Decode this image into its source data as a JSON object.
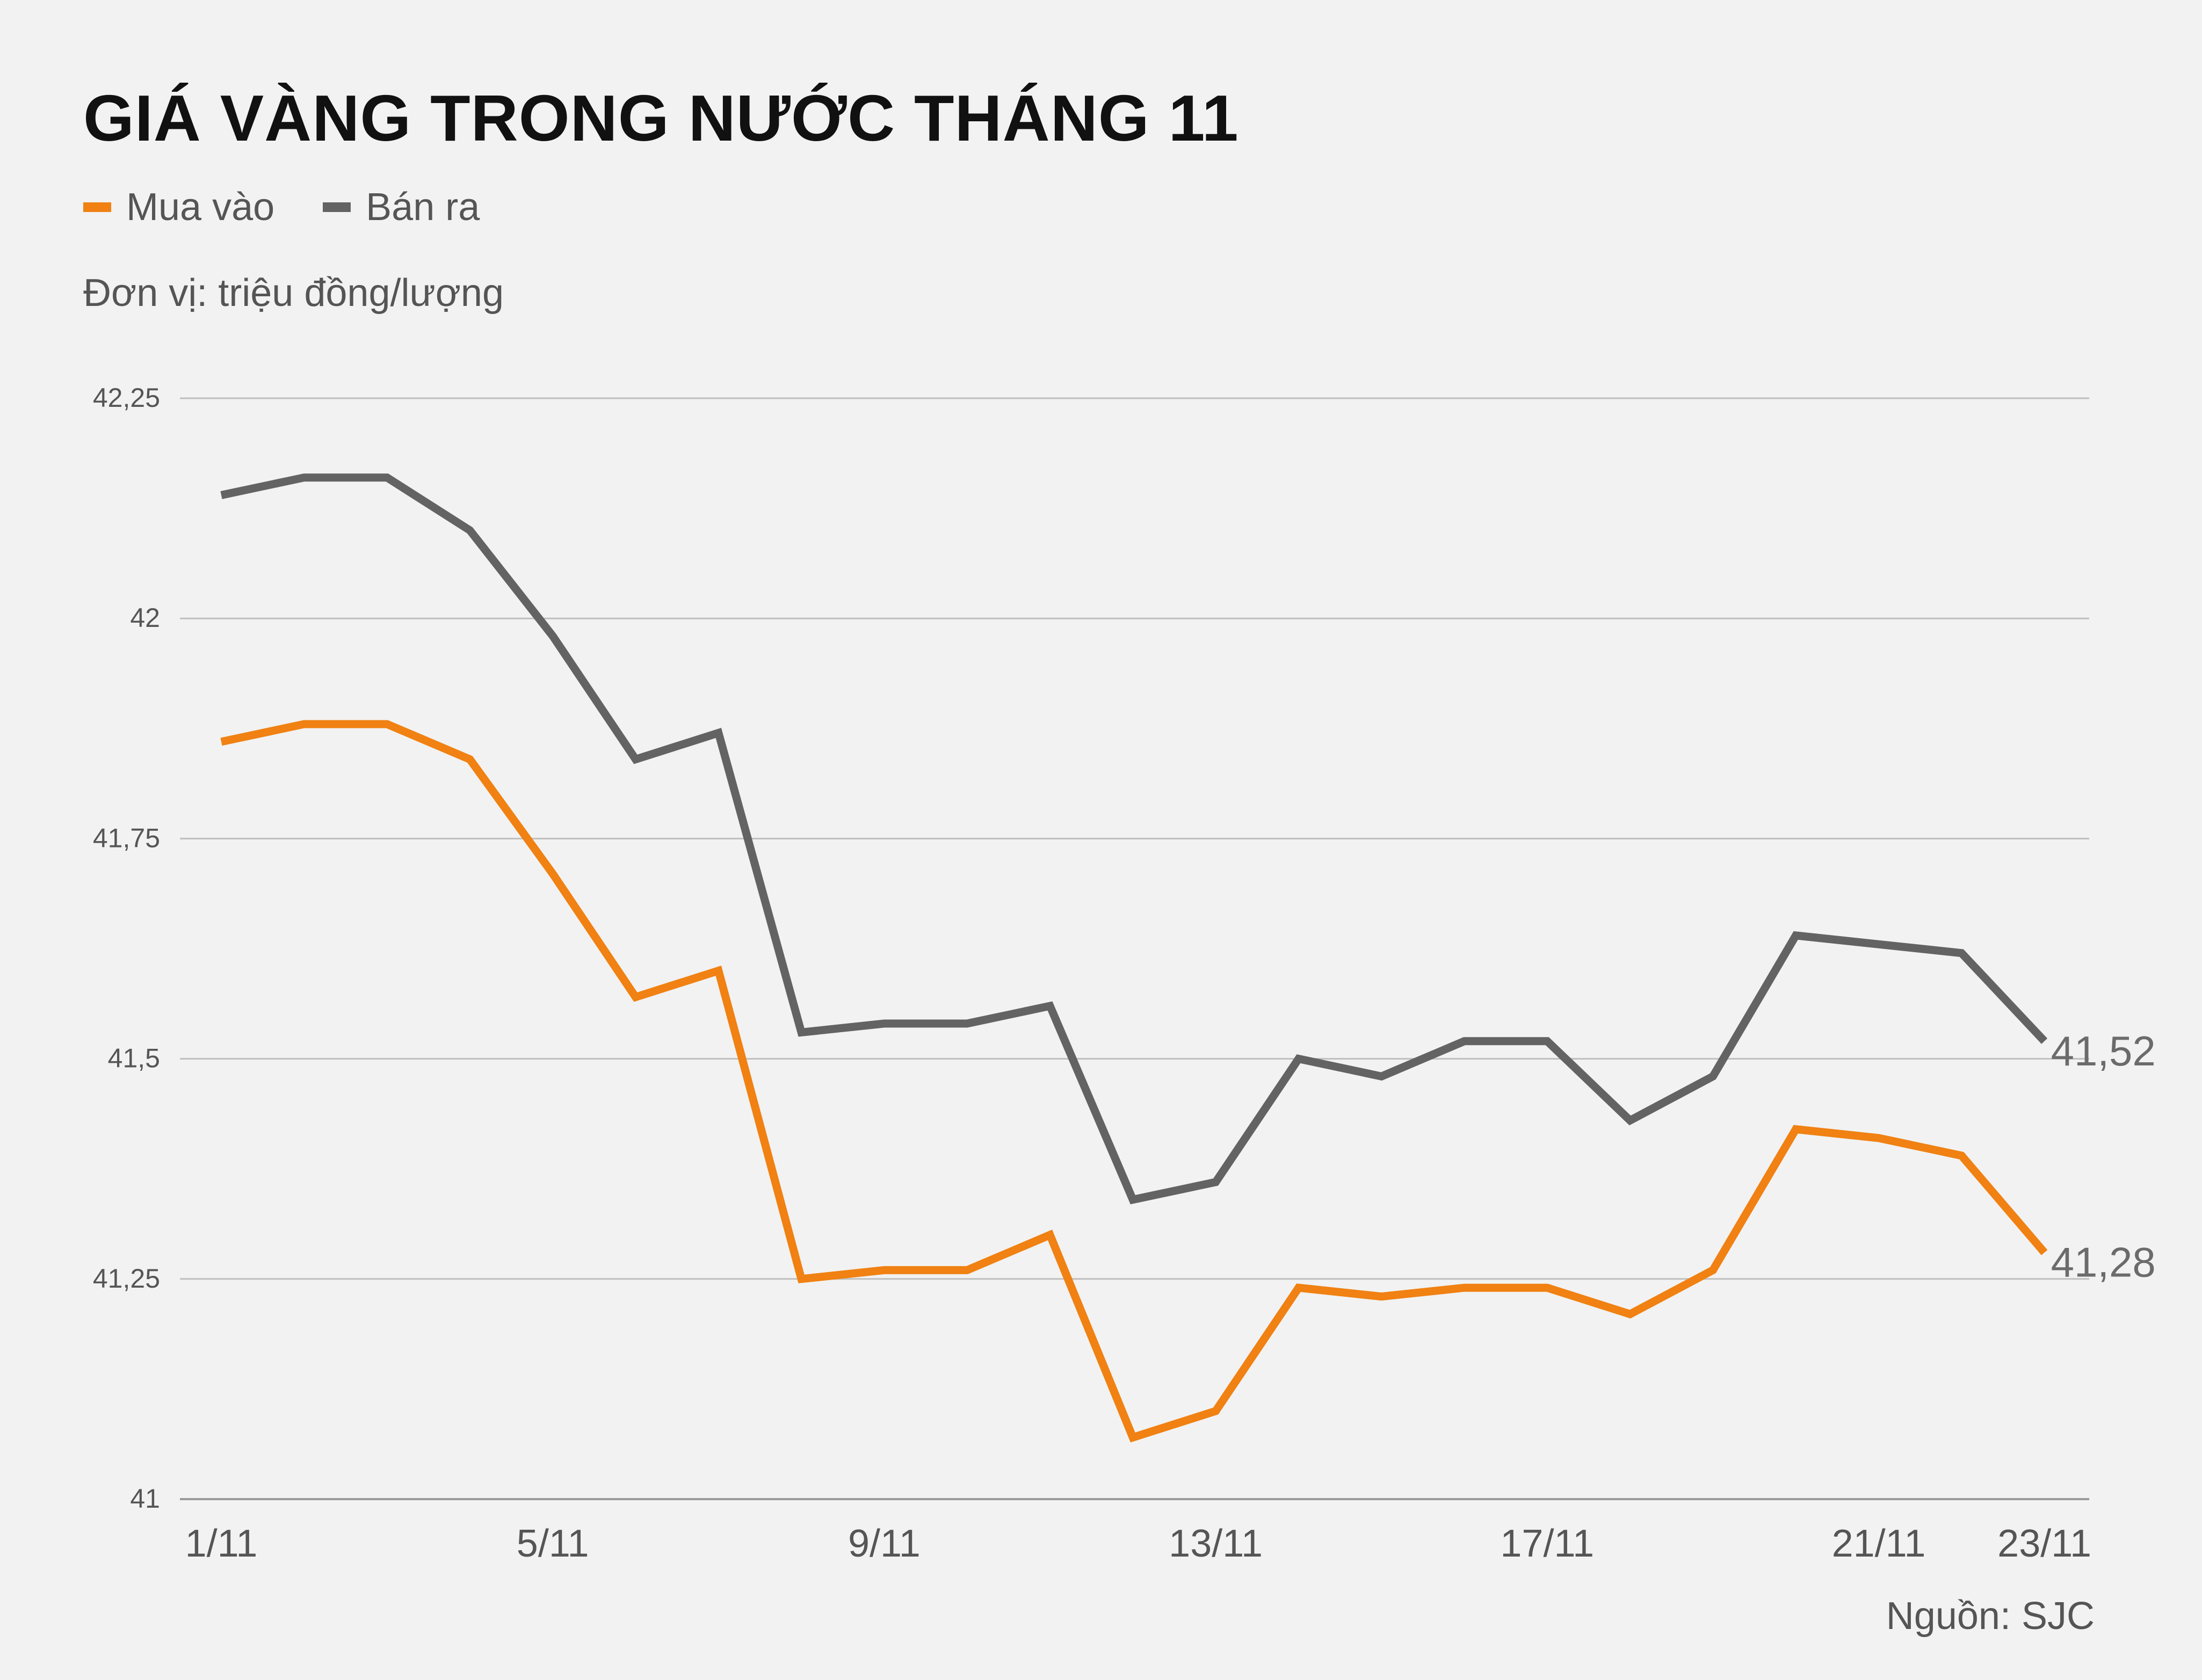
{
  "title": "GIÁ VÀNG TRONG NƯỚC THÁNG 11",
  "unit_label": "Đơn vị: triệu đồng/lượng",
  "source": "Nguồn: SJC",
  "colors": {
    "mua_vao": "#f08112",
    "ban_ra": "#636363",
    "grid": "#bfbfbf",
    "background": "#f2f2f2"
  },
  "chart_data": {
    "type": "line",
    "title": "GIÁ VÀNG TRONG NƯỚC THÁNG 11",
    "xlabel": "",
    "ylabel": "",
    "ylim": [
      41,
      42.25
    ],
    "yticks": [
      "41",
      "41,25",
      "41,5",
      "41,75",
      "42",
      "42,25"
    ],
    "ytick_values": [
      41,
      41.25,
      41.5,
      41.75,
      42,
      42.25
    ],
    "x": [
      "1/11",
      "2/11",
      "3/11",
      "4/11",
      "5/11",
      "6/11",
      "7/11",
      "8/11",
      "9/11",
      "10/11",
      "11/11",
      "12/11",
      "13/11",
      "14/11",
      "15/11",
      "16/11",
      "17/11",
      "18/11",
      "19/11",
      "20/11",
      "21/11",
      "22/11",
      "23/11"
    ],
    "xtick_labels": [
      "1/11",
      "5/11",
      "9/11",
      "13/11",
      "17/11",
      "21/11",
      "23/11"
    ],
    "grid": true,
    "legend_position": "top-left",
    "series": [
      {
        "name": "Mua vào",
        "color": "#f08112",
        "values": [
          41.86,
          41.88,
          41.88,
          41.84,
          41.71,
          41.57,
          41.6,
          41.25,
          41.26,
          41.26,
          41.3,
          41.07,
          41.1,
          41.24,
          41.23,
          41.24,
          41.24,
          41.21,
          41.26,
          41.42,
          41.41,
          41.39,
          41.28
        ],
        "end_label": "41,28"
      },
      {
        "name": "Bán ra",
        "color": "#636363",
        "values": [
          42.14,
          42.16,
          42.16,
          42.1,
          41.98,
          41.84,
          41.87,
          41.53,
          41.54,
          41.54,
          41.56,
          41.34,
          41.36,
          41.5,
          41.48,
          41.52,
          41.52,
          41.43,
          41.48,
          41.64,
          41.63,
          41.62,
          41.52
        ],
        "end_label": "41,52"
      }
    ]
  }
}
